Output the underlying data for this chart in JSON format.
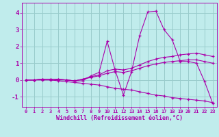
{
  "xlabel": "Windchill (Refroidissement éolien,°C)",
  "xlim": [
    -0.5,
    23.5
  ],
  "ylim": [
    -1.6,
    4.6
  ],
  "yticks": [
    -1,
    0,
    1,
    2,
    3,
    4
  ],
  "xticks": [
    0,
    1,
    2,
    3,
    4,
    5,
    6,
    7,
    8,
    9,
    10,
    11,
    12,
    13,
    14,
    15,
    16,
    17,
    18,
    19,
    20,
    21,
    22,
    23
  ],
  "background_color": "#c0ecec",
  "line_color": "#aa00aa",
  "grid_color": "#99cccc",
  "series": [
    [
      0.0,
      0.0,
      0.05,
      0.05,
      0.0,
      0.0,
      -0.05,
      -0.05,
      0.25,
      0.45,
      2.3,
      0.55,
      -0.9,
      0.5,
      2.65,
      4.05,
      4.1,
      3.0,
      2.4,
      1.1,
      1.1,
      1.0,
      -0.1,
      -1.4
    ],
    [
      0.0,
      0.0,
      0.05,
      0.05,
      0.05,
      0.0,
      -0.05,
      0.05,
      0.2,
      0.3,
      0.55,
      0.65,
      0.6,
      0.7,
      0.9,
      1.1,
      1.25,
      1.35,
      1.4,
      1.5,
      1.55,
      1.6,
      1.5,
      1.4
    ],
    [
      0.0,
      0.0,
      0.05,
      0.05,
      0.05,
      0.0,
      -0.05,
      0.05,
      0.15,
      0.25,
      0.4,
      0.5,
      0.45,
      0.55,
      0.7,
      0.85,
      0.95,
      1.05,
      1.1,
      1.15,
      1.2,
      1.2,
      1.1,
      1.0
    ],
    [
      0.0,
      0.0,
      0.0,
      0.0,
      -0.05,
      -0.1,
      -0.15,
      -0.2,
      -0.25,
      -0.3,
      -0.4,
      -0.5,
      -0.55,
      -0.6,
      -0.7,
      -0.8,
      -0.9,
      -0.95,
      -1.05,
      -1.1,
      -1.15,
      -1.2,
      -1.25,
      -1.35
    ]
  ]
}
